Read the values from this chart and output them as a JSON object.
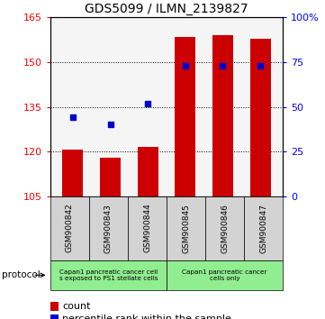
{
  "title": "GDS5099 / ILMN_2139827",
  "samples": [
    "GSM900842",
    "GSM900843",
    "GSM900844",
    "GSM900845",
    "GSM900846",
    "GSM900847"
  ],
  "counts": [
    120.5,
    118.0,
    121.5,
    158.5,
    159.0,
    158.0
  ],
  "percentile_ranks": [
    44,
    40,
    52,
    73,
    73,
    73
  ],
  "ylim_left": [
    105,
    165
  ],
  "ylim_right": [
    0,
    100
  ],
  "yticks_left": [
    105,
    120,
    135,
    150,
    165
  ],
  "yticks_right": [
    0,
    25,
    50,
    75,
    100
  ],
  "ytick_labels_right": [
    "0",
    "25",
    "50",
    "75",
    "100%"
  ],
  "bar_color": "#cc0000",
  "dot_color": "#0000cc",
  "bar_width": 0.55,
  "group1_color": "#90ee90",
  "group2_color": "#90ee90",
  "xtick_bg_color": "#d3d3d3",
  "protocol_label": "protocol",
  "legend_count_label": "count",
  "legend_percentile_label": "percentile rank within the sample",
  "background_color": "#ffffff",
  "plot_bg": "#f5f5f5"
}
